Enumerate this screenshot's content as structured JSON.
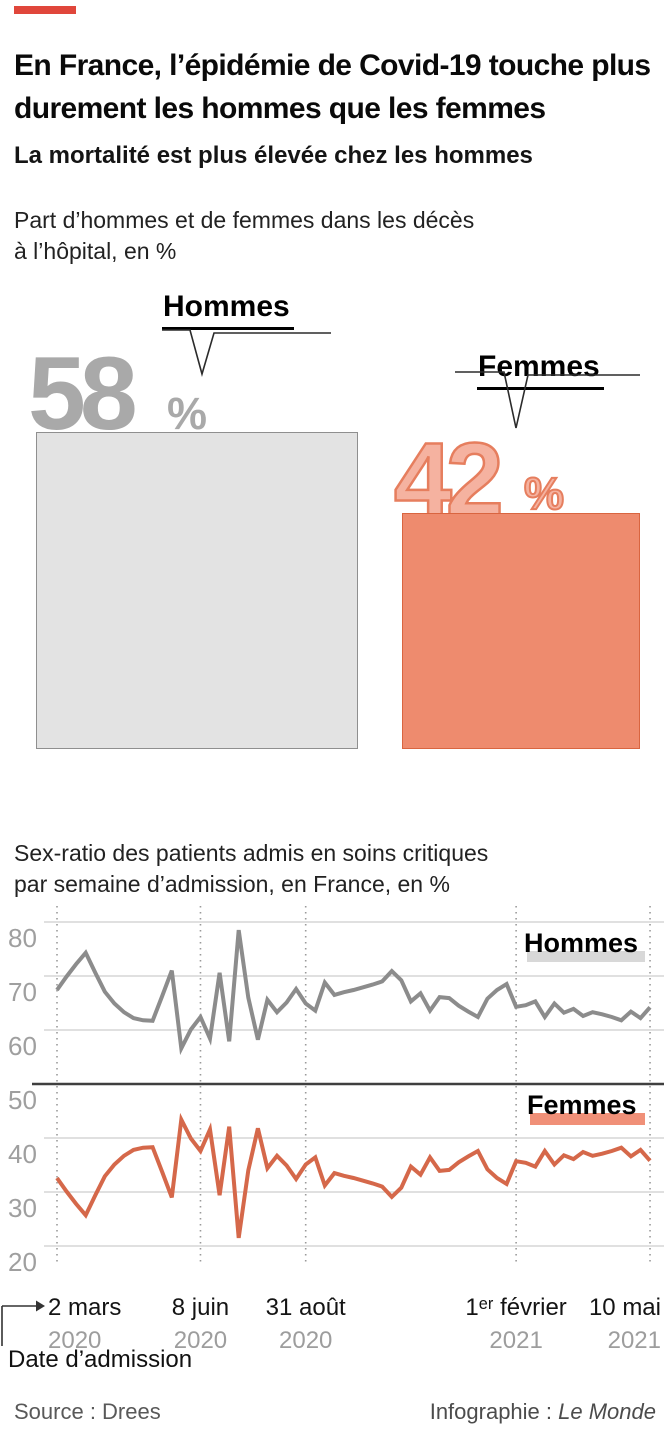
{
  "accent_color": "#e0463b",
  "header": {
    "title_lines": [
      "En France, l’épidémie de Covid-19 touche plus",
      "durement les hommes que les femmes"
    ],
    "subtitle": "La mortalité est plus élevée chez les hommes"
  },
  "captions": {
    "mortality": [
      "Part d’hommes et de femmes dans les décès",
      "à l’hôpital, en %"
    ],
    "sexratio": [
      "Sex-ratio des patients admis en soins critiques",
      "par semaine d’admission, en France, en %"
    ]
  },
  "chart_data": [
    {
      "type": "bar",
      "title": "Part d’hommes et de femmes dans les décès à l’hôpital, en %",
      "categories": [
        "Hommes",
        "Femmes"
      ],
      "values": [
        58,
        42
      ],
      "unit": "%",
      "colors": {
        "hommes_fill": "#e3e3e3",
        "hommes_border": "#8f8f8f",
        "hommes_number": "#a9a9a9",
        "femmes_fill": "#ee8b6e",
        "femmes_border": "#d96540",
        "femmes_number_fill": "#f5b2a0",
        "femmes_number_stroke": "#e67e5e"
      }
    },
    {
      "type": "line",
      "title": "Sex-ratio des patients admis en soins critiques par semaine d’admission, en France, en %",
      "ylim": [
        20,
        80
      ],
      "yticks": [
        80,
        70,
        60,
        50,
        40,
        30,
        20
      ],
      "divider_y": 50,
      "grid": true,
      "legend_position": "inline-right",
      "xlabel": "Date d’admission",
      "xticks": [
        {
          "label": "2 mars",
          "year": "2020",
          "week": 0
        },
        {
          "label": "8 juin",
          "year": "2020",
          "week": 15
        },
        {
          "label": "31 août",
          "year": "2020",
          "week": 26
        },
        {
          "label": "1ᵉʳ février",
          "year": "2021",
          "week": 48
        },
        {
          "label": "10 mai",
          "year": "2021",
          "week": 62
        }
      ],
      "series": [
        {
          "name": "Hommes",
          "color": "#8c8c8c",
          "highlight": "#d8d8d8",
          "values": [
            67.4,
            69.9,
            72.2,
            74.3,
            70.6,
            67.1,
            64.9,
            63.3,
            62.2,
            61.8,
            61.7,
            66.3,
            71.0,
            56.6,
            60.1,
            62.4,
            58.4,
            70.6,
            57.9,
            78.5,
            66.0,
            58.2,
            65.6,
            63.3,
            65.1,
            67.6,
            64.9,
            63.6,
            68.8,
            66.5,
            67.0,
            67.4,
            67.9,
            68.4,
            69.0,
            70.9,
            69.2,
            65.3,
            66.8,
            63.6,
            66.1,
            65.9,
            64.5,
            63.4,
            62.4,
            65.8,
            67.4,
            68.5,
            64.3,
            64.6,
            65.3,
            62.4,
            64.9,
            63.2,
            63.9,
            62.6,
            63.3,
            62.9,
            62.4,
            61.8,
            63.4,
            62.2,
            64.2
          ]
        },
        {
          "name": "Femmes",
          "color": "#d5684a",
          "highlight": "#f09078",
          "values": [
            32.6,
            30.1,
            27.8,
            25.7,
            29.4,
            32.9,
            35.1,
            36.7,
            37.8,
            38.2,
            38.3,
            33.7,
            29.0,
            43.4,
            39.9,
            37.6,
            41.6,
            29.4,
            42.1,
            21.5,
            34.0,
            41.8,
            34.4,
            36.7,
            34.9,
            32.4,
            35.1,
            36.4,
            31.2,
            33.5,
            33.0,
            32.6,
            32.1,
            31.6,
            31.0,
            29.1,
            30.8,
            34.7,
            33.2,
            36.4,
            33.9,
            34.1,
            35.5,
            36.6,
            37.6,
            34.2,
            32.6,
            31.5,
            35.7,
            35.4,
            34.7,
            37.6,
            35.1,
            36.8,
            36.1,
            37.4,
            36.7,
            37.1,
            37.6,
            38.2,
            36.6,
            37.8,
            35.8
          ]
        }
      ]
    }
  ],
  "xaxis_annotation": "Date d’admission",
  "footer": {
    "source": "Source : Drees",
    "credit_prefix": "Infographie : ",
    "credit_name": "Le Monde"
  }
}
